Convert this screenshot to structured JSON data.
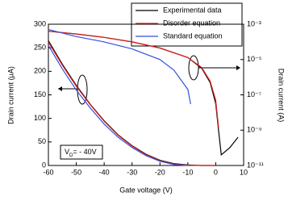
{
  "chart_data": {
    "type": "line",
    "x_label": "Gate voltage (V)",
    "y_label": "Drain current  (μA)",
    "y2_label": "Drain current (A)",
    "annotation": [
      "V",
      "D",
      "= - 40V"
    ],
    "xlim": [
      -60,
      10
    ],
    "xticks": [
      -60,
      -50,
      -40,
      -30,
      -20,
      -10,
      0,
      10
    ],
    "ylim": [
      0,
      300
    ],
    "yticks": [
      0,
      50,
      100,
      150,
      200,
      250,
      300
    ],
    "y2lim": [
      1e-11,
      0.001
    ],
    "y2log": true,
    "y2ticks": [
      {
        "value": 1e-11,
        "label": "10⁻¹¹"
      },
      {
        "value": 1e-09,
        "label": "10⁻⁹"
      },
      {
        "value": 1e-07,
        "label": "10⁻⁷"
      },
      {
        "value": 1e-05,
        "label": "10⁻⁵"
      },
      {
        "value": 0.001,
        "label": "10⁻³"
      }
    ],
    "series": [
      {
        "name": "Experimental data",
        "color": "#000000",
        "x": [
          -60,
          -55,
          -50,
          -45,
          -40,
          -35,
          -30,
          -25,
          -20,
          -15,
          -10,
          -5,
          0
        ],
        "values": [
          265,
          215,
          170,
          130,
          95,
          65,
          42,
          24,
          11,
          4,
          1,
          0,
          0
        ]
      },
      {
        "name": "Disorder equation",
        "color": "#e02020",
        "x": [
          -60,
          -55,
          -50,
          -45,
          -40,
          -35,
          -30,
          -25,
          -20,
          -15,
          -10,
          -5,
          0
        ],
        "values": [
          262,
          213,
          168,
          129,
          94,
          64,
          41,
          23,
          10,
          3,
          0.5,
          0,
          0
        ]
      },
      {
        "name": "Standard equation",
        "color": "#3050e0",
        "x": [
          -60,
          -55,
          -50,
          -45,
          -40,
          -35,
          -30,
          -25,
          -20,
          -15,
          -10
        ],
        "values": [
          255,
          205,
          160,
          122,
          88,
          60,
          38,
          21,
          9,
          2,
          0
        ]
      },
      {
        "color": "#000000",
        "axis": "y2",
        "x": [
          -60,
          -50,
          -40,
          -30,
          -20,
          -10,
          -5,
          -2,
          0,
          1,
          2,
          5,
          8
        ],
        "values": [
          0.0004,
          0.00028,
          0.00018,
          0.0001,
          4.5e-05,
          1.3e-05,
          3.2e-06,
          5e-07,
          3.2e-08,
          1e-09,
          4e-11,
          1e-10,
          4e-10
        ]
      },
      {
        "color": "#e02020",
        "axis": "y2",
        "x": [
          -60,
          -50,
          -40,
          -30,
          -20,
          -10,
          -5,
          -2,
          0,
          1
        ],
        "values": [
          0.0004,
          0.00028,
          0.00018,
          0.0001,
          4.5e-05,
          1.3e-05,
          3.5e-06,
          6e-07,
          5e-08,
          1.5e-09
        ]
      },
      {
        "color": "#3050e0",
        "axis": "y2",
        "x": [
          -60,
          -50,
          -40,
          -30,
          -20,
          -15,
          -10,
          -9
        ],
        "values": [
          0.0005,
          0.0002,
          0.0001,
          4e-05,
          1e-05,
          2.5e-06,
          2e-07,
          3e-08
        ]
      }
    ]
  }
}
